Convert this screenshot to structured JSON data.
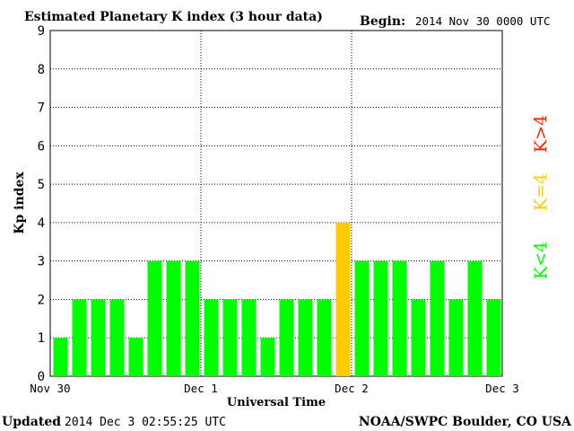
{
  "chart_data": {
    "type": "bar",
    "title": "Estimated Planetary K index (3 hour data)",
    "begin_label": "Begin:",
    "begin_value": "2014 Nov 30 0000 UTC",
    "ylabel": "Kp index",
    "xlabel": "Universal Time",
    "ylim": [
      0,
      9
    ],
    "y_ticks": [
      "0",
      "1",
      "2",
      "3",
      "4",
      "5",
      "6",
      "7",
      "8",
      "9"
    ],
    "x_tick_labels": [
      "Nov 30",
      "Dec 1",
      "Dec 2",
      "Dec 3"
    ],
    "values": [
      1,
      2,
      2,
      2,
      1,
      3,
      3,
      3,
      2,
      2,
      2,
      1,
      2,
      2,
      2,
      4,
      3,
      3,
      3,
      2,
      3,
      2,
      3,
      2
    ],
    "grid": true,
    "legend": [
      {
        "label": "K<4",
        "color": "#00ff00"
      },
      {
        "label": "K=4",
        "color": "#ffcc00"
      },
      {
        "label": "K>4",
        "color": "#ff2200"
      }
    ],
    "updated_label": "Updated",
    "updated_value": "2014 Dec  3 02:55:25 UTC",
    "source": "NOAA/SWPC Boulder, CO USA"
  }
}
